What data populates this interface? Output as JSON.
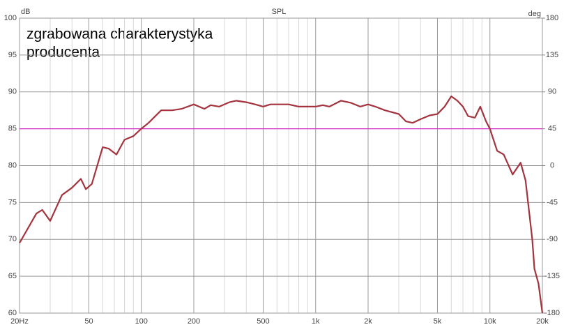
{
  "chart_data": {
    "type": "line",
    "title": "SPL",
    "ylabel": "dB",
    "y2label": "deg",
    "annotation": [
      "zgrabowana charakterystyka",
      "producenta"
    ],
    "log_x": true,
    "grid": true,
    "color": "#a3333d",
    "reference_line": {
      "value": 85,
      "color": "#d633c8"
    },
    "xlim": [
      20,
      20000
    ],
    "xticks": [
      {
        "value": 20,
        "label": "20Hz"
      },
      50,
      100,
      200,
      500,
      {
        "value": 1000,
        "label": "1k"
      },
      {
        "value": 2000,
        "label": "2k"
      },
      {
        "value": 5000,
        "label": "5k"
      },
      {
        "value": 10000,
        "label": "10k"
      },
      {
        "value": 20000,
        "label": "20k"
      }
    ],
    "x_minor_ticks": [
      30,
      40,
      60,
      70,
      80,
      90,
      300,
      400,
      600,
      700,
      800,
      900,
      3000,
      4000,
      6000,
      7000,
      8000,
      9000
    ],
    "ylim": [
      60,
      100
    ],
    "yticks": [
      60,
      65,
      70,
      75,
      80,
      85,
      90,
      95,
      100
    ],
    "y2lim": [
      -180,
      180
    ],
    "y2ticks": [
      -180,
      -135,
      -90,
      -45,
      0,
      45,
      90,
      135,
      180
    ],
    "x": [
      20,
      25,
      27,
      30,
      35,
      40,
      45,
      48,
      52,
      60,
      65,
      72,
      80,
      90,
      100,
      110,
      130,
      150,
      170,
      200,
      230,
      250,
      280,
      320,
      350,
      400,
      450,
      500,
      550,
      700,
      800,
      1000,
      1100,
      1200,
      1400,
      1600,
      1800,
      2000,
      2200,
      2500,
      3000,
      3300,
      3600,
      4000,
      4500,
      5000,
      5500,
      6000,
      6500,
      7000,
      7500,
      8200,
      8800,
      9500,
      10000,
      11000,
      12000,
      13500,
      15000,
      16000,
      17500,
      18000,
      19000,
      20000
    ],
    "values": [
      69.5,
      73.5,
      74,
      72.5,
      76,
      77,
      78.2,
      76.8,
      77.5,
      82.5,
      82.3,
      81.5,
      83.5,
      84,
      85,
      85.8,
      87.5,
      87.5,
      87.7,
      88.3,
      87.7,
      88.2,
      88,
      88.6,
      88.8,
      88.6,
      88.3,
      88,
      88.3,
      88.3,
      88,
      88,
      88.2,
      88,
      88.8,
      88.5,
      88,
      88.3,
      88,
      87.5,
      87,
      86,
      85.8,
      86.3,
      86.8,
      87,
      88,
      89.4,
      88.8,
      88,
      86.7,
      86.5,
      88,
      86,
      85,
      82,
      81.5,
      78.8,
      80.4,
      78,
      70,
      66,
      64,
      60
    ]
  }
}
